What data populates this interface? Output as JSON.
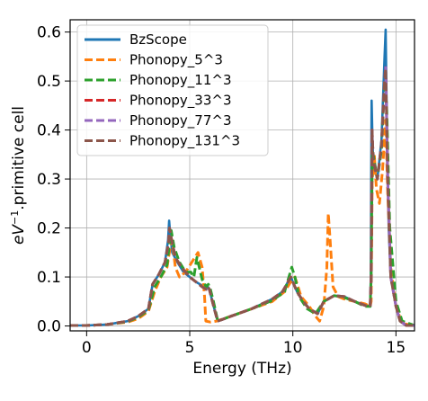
{
  "chart_data": {
    "type": "line",
    "xlabel": "Energy (THz)",
    "ylabel_parts": [
      "eV",
      "−1",
      ".primitive cell"
    ],
    "xlim": [
      -0.8,
      15.9
    ],
    "ylim": [
      -0.01,
      0.625
    ],
    "xticks": [
      0,
      5,
      10,
      15
    ],
    "yticks": [
      0.0,
      0.1,
      0.2,
      0.3,
      0.4,
      0.5,
      0.6
    ],
    "ytick_labels": [
      "0.0",
      "0.1",
      "0.2",
      "0.3",
      "0.4",
      "0.5",
      "0.6"
    ],
    "grid": true,
    "legend_position": "top-left",
    "series": [
      {
        "name": "BzScope",
        "color": "#1f77b4",
        "dash": "solid",
        "x": [
          -0.8,
          0,
          1,
          2,
          2.5,
          3,
          3.2,
          3.5,
          3.8,
          3.95,
          4.0,
          4.05,
          4.15,
          4.4,
          4.7,
          5,
          5.3,
          5.5,
          5.7,
          5.8,
          5.85,
          5.95,
          6.1,
          6.35,
          6.5,
          7,
          8,
          9,
          9.5,
          9.9,
          10.05,
          10.2,
          10.5,
          10.8,
          11.2,
          11.5,
          12,
          12.5,
          13,
          13.5,
          13.75,
          13.78,
          13.8,
          13.82,
          13.85,
          13.9,
          14.1,
          14.3,
          14.45,
          14.5,
          14.55,
          14.65,
          14.75,
          15,
          15.2,
          15.5,
          15.9
        ],
        "y": [
          0.001,
          0.001,
          0.003,
          0.01,
          0.02,
          0.035,
          0.085,
          0.105,
          0.13,
          0.175,
          0.215,
          0.19,
          0.15,
          0.13,
          0.11,
          0.1,
          0.09,
          0.085,
          0.08,
          0.075,
          0.082,
          0.075,
          0.05,
          0.01,
          0.012,
          0.02,
          0.035,
          0.055,
          0.07,
          0.1,
          0.085,
          0.07,
          0.05,
          0.035,
          0.025,
          0.05,
          0.062,
          0.06,
          0.05,
          0.042,
          0.04,
          0.1,
          0.3,
          0.46,
          0.4,
          0.33,
          0.3,
          0.38,
          0.55,
          0.605,
          0.45,
          0.2,
          0.1,
          0.04,
          0.01,
          0.001,
          0.001
        ]
      },
      {
        "name": "Phonopy_5^3",
        "color": "#ff7f0e",
        "dash": "dashed",
        "x": [
          -0.8,
          0,
          1,
          2,
          2.5,
          3,
          3.3,
          3.6,
          3.9,
          4.05,
          4.15,
          4.3,
          4.5,
          4.8,
          5.1,
          5.4,
          5.6,
          5.72,
          5.78,
          6.0,
          6.3,
          7,
          8,
          9,
          9.6,
          9.9,
          10.1,
          10.4,
          10.8,
          11.1,
          11.3,
          11.5,
          11.65,
          11.72,
          11.8,
          11.95,
          12.2,
          12.5,
          13,
          13.5,
          13.75,
          13.8,
          13.85,
          13.95,
          14.05,
          14.2,
          14.35,
          14.5,
          14.6,
          14.75,
          15,
          15.3,
          15.9
        ],
        "y": [
          0.001,
          0.001,
          0.003,
          0.008,
          0.015,
          0.03,
          0.07,
          0.1,
          0.12,
          0.16,
          0.175,
          0.12,
          0.1,
          0.11,
          0.13,
          0.15,
          0.12,
          0.06,
          0.01,
          0.008,
          0.01,
          0.02,
          0.035,
          0.05,
          0.07,
          0.09,
          0.1,
          0.06,
          0.04,
          0.02,
          0.01,
          0.04,
          0.12,
          0.23,
          0.18,
          0.08,
          0.06,
          0.055,
          0.05,
          0.045,
          0.04,
          0.05,
          0.3,
          0.35,
          0.28,
          0.25,
          0.32,
          0.42,
          0.27,
          0.12,
          0.04,
          0.005,
          0.001
        ]
      },
      {
        "name": "Phonopy_11^3",
        "color": "#2ca02c",
        "dash": "dashed",
        "x": [
          -0.8,
          0,
          1,
          2,
          2.5,
          3,
          3.3,
          3.6,
          3.9,
          4.02,
          4.1,
          4.25,
          4.5,
          4.8,
          5.05,
          5.2,
          5.35,
          5.6,
          5.8,
          5.9,
          6.0,
          6.15,
          6.35,
          6.5,
          7,
          8,
          9,
          9.6,
          9.95,
          10.1,
          10.3,
          10.7,
          11.1,
          11.5,
          12,
          12.5,
          13,
          13.5,
          13.75,
          13.8,
          13.85,
          13.9,
          14.1,
          14.3,
          14.45,
          14.55,
          14.7,
          15,
          15.3,
          15.9
        ],
        "y": [
          0.001,
          0.001,
          0.003,
          0.009,
          0.018,
          0.032,
          0.08,
          0.1,
          0.125,
          0.17,
          0.195,
          0.16,
          0.13,
          0.11,
          0.11,
          0.1,
          0.14,
          0.095,
          0.08,
          0.085,
          0.075,
          0.05,
          0.012,
          0.012,
          0.02,
          0.035,
          0.052,
          0.07,
          0.12,
          0.1,
          0.06,
          0.035,
          0.025,
          0.05,
          0.062,
          0.058,
          0.05,
          0.04,
          0.04,
          0.1,
          0.36,
          0.35,
          0.3,
          0.36,
          0.5,
          0.45,
          0.2,
          0.05,
          0.01,
          0.001
        ]
      },
      {
        "name": "Phonopy_33^3",
        "color": "#d62728",
        "dash": "dashed",
        "x": [
          -0.8,
          0,
          1,
          2,
          2.5,
          3,
          3.2,
          3.5,
          3.8,
          3.97,
          4.02,
          4.1,
          4.3,
          4.6,
          5,
          5.3,
          5.6,
          5.8,
          5.87,
          5.95,
          6.1,
          6.35,
          6.5,
          7,
          8,
          9,
          9.5,
          9.9,
          10.05,
          10.2,
          10.5,
          10.8,
          11.2,
          11.5,
          12,
          12.5,
          13,
          13.5,
          13.75,
          13.8,
          13.84,
          13.9,
          14.1,
          14.3,
          14.45,
          14.5,
          14.6,
          14.75,
          15,
          15.2,
          15.5,
          15.9
        ],
        "y": [
          0.001,
          0.001,
          0.003,
          0.01,
          0.02,
          0.035,
          0.085,
          0.105,
          0.13,
          0.17,
          0.2,
          0.18,
          0.14,
          0.12,
          0.1,
          0.09,
          0.08,
          0.075,
          0.08,
          0.075,
          0.05,
          0.01,
          0.012,
          0.02,
          0.035,
          0.055,
          0.07,
          0.1,
          0.085,
          0.07,
          0.05,
          0.035,
          0.025,
          0.05,
          0.062,
          0.06,
          0.05,
          0.042,
          0.04,
          0.1,
          0.4,
          0.34,
          0.3,
          0.37,
          0.5,
          0.53,
          0.3,
          0.1,
          0.04,
          0.01,
          0.001,
          0.001
        ]
      },
      {
        "name": "Phonopy_77^3",
        "color": "#9467bd",
        "dash": "dashed",
        "x": [
          -0.8,
          0,
          1,
          2,
          2.5,
          3,
          3.2,
          3.5,
          3.8,
          3.97,
          4.02,
          4.1,
          4.3,
          4.6,
          5,
          5.3,
          5.6,
          5.8,
          5.87,
          5.95,
          6.1,
          6.35,
          6.5,
          7,
          8,
          9,
          9.5,
          9.9,
          10.05,
          10.2,
          10.5,
          10.8,
          11.2,
          11.5,
          12,
          12.5,
          13,
          13.5,
          13.75,
          13.8,
          13.84,
          13.9,
          14.1,
          14.3,
          14.45,
          14.5,
          14.6,
          14.75,
          15,
          15.2,
          15.5,
          15.9
        ],
        "y": [
          0.001,
          0.001,
          0.003,
          0.01,
          0.02,
          0.035,
          0.085,
          0.105,
          0.13,
          0.17,
          0.2,
          0.18,
          0.14,
          0.12,
          0.1,
          0.09,
          0.08,
          0.075,
          0.08,
          0.075,
          0.05,
          0.01,
          0.012,
          0.02,
          0.035,
          0.055,
          0.07,
          0.1,
          0.085,
          0.07,
          0.05,
          0.035,
          0.025,
          0.05,
          0.062,
          0.06,
          0.05,
          0.042,
          0.04,
          0.1,
          0.4,
          0.34,
          0.3,
          0.37,
          0.5,
          0.53,
          0.3,
          0.1,
          0.04,
          0.01,
          0.001,
          0.001
        ]
      },
      {
        "name": "Phonopy_131^3",
        "color": "#8c564b",
        "dash": "dashed",
        "x": [
          -0.8,
          0,
          1,
          2,
          2.5,
          3,
          3.2,
          3.5,
          3.8,
          3.97,
          4.02,
          4.1,
          4.3,
          4.6,
          5,
          5.3,
          5.6,
          5.8,
          5.87,
          5.95,
          6.1,
          6.35,
          6.5,
          7,
          8,
          9,
          9.5,
          9.9,
          10.05,
          10.2,
          10.5,
          10.8,
          11.2,
          11.5,
          12,
          12.5,
          13,
          13.5,
          13.75,
          13.8,
          13.84,
          13.9,
          14.1,
          14.3,
          14.45,
          14.5,
          14.6,
          14.75,
          15,
          15.2,
          15.5,
          15.9
        ],
        "y": [
          0.001,
          0.001,
          0.003,
          0.01,
          0.02,
          0.035,
          0.085,
          0.105,
          0.13,
          0.17,
          0.2,
          0.18,
          0.14,
          0.12,
          0.1,
          0.09,
          0.08,
          0.075,
          0.08,
          0.075,
          0.05,
          0.01,
          0.012,
          0.02,
          0.035,
          0.055,
          0.07,
          0.1,
          0.085,
          0.07,
          0.05,
          0.035,
          0.025,
          0.05,
          0.062,
          0.06,
          0.05,
          0.042,
          0.04,
          0.1,
          0.4,
          0.34,
          0.3,
          0.37,
          0.5,
          0.525,
          0.3,
          0.1,
          0.04,
          0.01,
          0.001,
          0.001
        ]
      }
    ]
  }
}
